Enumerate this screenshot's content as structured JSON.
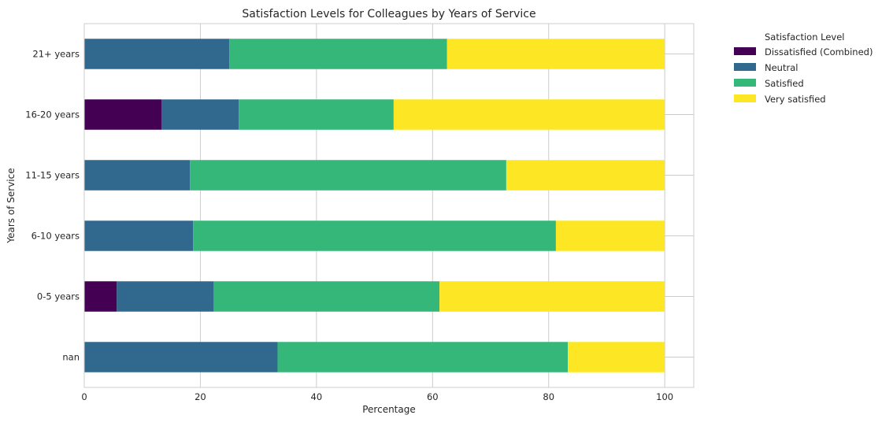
{
  "chart_data": {
    "type": "bar",
    "orientation": "horizontal",
    "stacked": true,
    "title": "Satisfaction Levels for Colleagues by Years of Service",
    "xlabel": "Percentage",
    "ylabel": "Years of Service",
    "xlim": [
      0,
      105
    ],
    "xticks": [
      0,
      20,
      40,
      60,
      80,
      100
    ],
    "grid": true,
    "categories": [
      "nan",
      "0-5 years",
      "6-10 years",
      "11-15 years",
      "16-20 years",
      "21+ years"
    ],
    "series": [
      {
        "name": "Dissatisfied (Combined)",
        "color": "#440154",
        "values": [
          0,
          5.6,
          0,
          0,
          13.3,
          0
        ]
      },
      {
        "name": "Neutral",
        "color": "#31688e",
        "values": [
          33.3,
          16.7,
          18.75,
          18.2,
          13.3,
          25.0
        ]
      },
      {
        "name": "Satisfied",
        "color": "#35b779",
        "values": [
          50.0,
          38.9,
          62.5,
          54.5,
          26.7,
          37.5
        ]
      },
      {
        "name": "Very satisfied",
        "color": "#fde725",
        "values": [
          16.7,
          38.8,
          18.75,
          27.3,
          46.7,
          37.5
        ]
      }
    ],
    "legend": {
      "title": "Satisfaction Level",
      "position": "outside-right"
    }
  }
}
